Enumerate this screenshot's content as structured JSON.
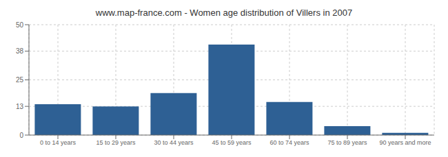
{
  "chart_data": {
    "type": "bar",
    "title": "www.map-france.com - Women age distribution of Villers in 2007",
    "categories": [
      "0 to 14 years",
      "15 to 29 years",
      "30 to 44 years",
      "45 to 59 years",
      "60 to 74 years",
      "75 to 89 years",
      "90 years and more"
    ],
    "values": [
      14,
      13,
      19,
      41,
      15,
      4,
      1
    ],
    "color": "#2e6094",
    "ylim": [
      0,
      50
    ],
    "yticks": [
      0,
      13,
      25,
      38,
      50
    ],
    "grid": true
  }
}
